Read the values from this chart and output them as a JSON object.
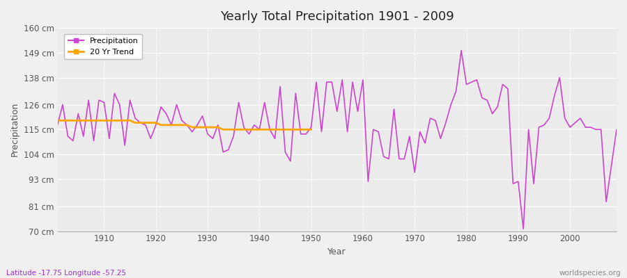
{
  "title": "Yearly Total Precipitation 1901 - 2009",
  "xlabel": "Year",
  "ylabel": "Precipitation",
  "footnote_left": "Latitude -17.75 Longitude -57.25",
  "footnote_right": "worldspecies.org",
  "line_color": "#CC44CC",
  "trend_color": "#FFA500",
  "bg_color": "#F0F0F0",
  "plot_bg_color": "#EBEBEB",
  "ylim": [
    70,
    160
  ],
  "yticks": [
    70,
    81,
    93,
    104,
    115,
    126,
    138,
    149,
    160
  ],
  "ytick_labels": [
    "70 cm",
    "81 cm",
    "93 cm",
    "104 cm",
    "115 cm",
    "126 cm",
    "138 cm",
    "149 cm",
    "160 cm"
  ],
  "years": [
    1901,
    1902,
    1903,
    1904,
    1905,
    1906,
    1907,
    1908,
    1909,
    1910,
    1911,
    1912,
    1913,
    1914,
    1915,
    1916,
    1917,
    1918,
    1919,
    1920,
    1921,
    1922,
    1923,
    1924,
    1925,
    1926,
    1927,
    1928,
    1929,
    1930,
    1931,
    1932,
    1933,
    1934,
    1935,
    1936,
    1937,
    1938,
    1939,
    1940,
    1941,
    1942,
    1943,
    1944,
    1945,
    1946,
    1947,
    1948,
    1949,
    1950,
    1951,
    1952,
    1953,
    1954,
    1955,
    1956,
    1957,
    1958,
    1959,
    1960,
    1961,
    1962,
    1963,
    1964,
    1965,
    1966,
    1967,
    1968,
    1969,
    1970,
    1971,
    1972,
    1973,
    1974,
    1975,
    1976,
    1977,
    1978,
    1979,
    1980,
    1981,
    1982,
    1983,
    1984,
    1985,
    1986,
    1987,
    1988,
    1989,
    1990,
    1991,
    1992,
    1993,
    1994,
    1995,
    1996,
    1997,
    1998,
    1999,
    2000,
    2001,
    2002,
    2003,
    2004,
    2005,
    2006,
    2007,
    2008,
    2009
  ],
  "precipitation": [
    117,
    126,
    112,
    110,
    122,
    112,
    128,
    110,
    128,
    127,
    111,
    131,
    126,
    108,
    128,
    120,
    118,
    117,
    111,
    117,
    125,
    122,
    117,
    126,
    119,
    117,
    114,
    117,
    121,
    113,
    111,
    117,
    105,
    106,
    112,
    127,
    116,
    113,
    117,
    115,
    127,
    115,
    111,
    134,
    105,
    101,
    131,
    113,
    113,
    116,
    136,
    114,
    136,
    136,
    123,
    137,
    114,
    136,
    123,
    137,
    92,
    115,
    114,
    103,
    102,
    124,
    102,
    102,
    112,
    96,
    114,
    109,
    120,
    119,
    111,
    118,
    126,
    132,
    150,
    135,
    136,
    137,
    129,
    128,
    122,
    125,
    135,
    133,
    91,
    92,
    71,
    115,
    91,
    116,
    117,
    120,
    130,
    138,
    120,
    116,
    118,
    120,
    116,
    116,
    115,
    115,
    83,
    99,
    115
  ],
  "trend_years": [
    1901,
    1902,
    1903,
    1904,
    1905,
    1906,
    1907,
    1908,
    1909,
    1910,
    1911,
    1912,
    1913,
    1914,
    1915,
    1916,
    1917,
    1918,
    1919,
    1920,
    1921,
    1922,
    1923,
    1924,
    1925,
    1926,
    1927,
    1928,
    1929,
    1930,
    1931,
    1932,
    1933,
    1934,
    1935,
    1936,
    1937,
    1938,
    1939,
    1940,
    1941,
    1942,
    1943,
    1944,
    1945,
    1946,
    1947,
    1948,
    1949,
    1950
  ],
  "trend_values": [
    119,
    119,
    119,
    119,
    119,
    119,
    119,
    119,
    119,
    119,
    119,
    119,
    119,
    119,
    119,
    118,
    118,
    118,
    118,
    118,
    117,
    117,
    117,
    117,
    117,
    117,
    116,
    116,
    116,
    116,
    116,
    116,
    115,
    115,
    115,
    115,
    115,
    115,
    115,
    115,
    115,
    115,
    115,
    115,
    115,
    115,
    115,
    115,
    115,
    115
  ]
}
